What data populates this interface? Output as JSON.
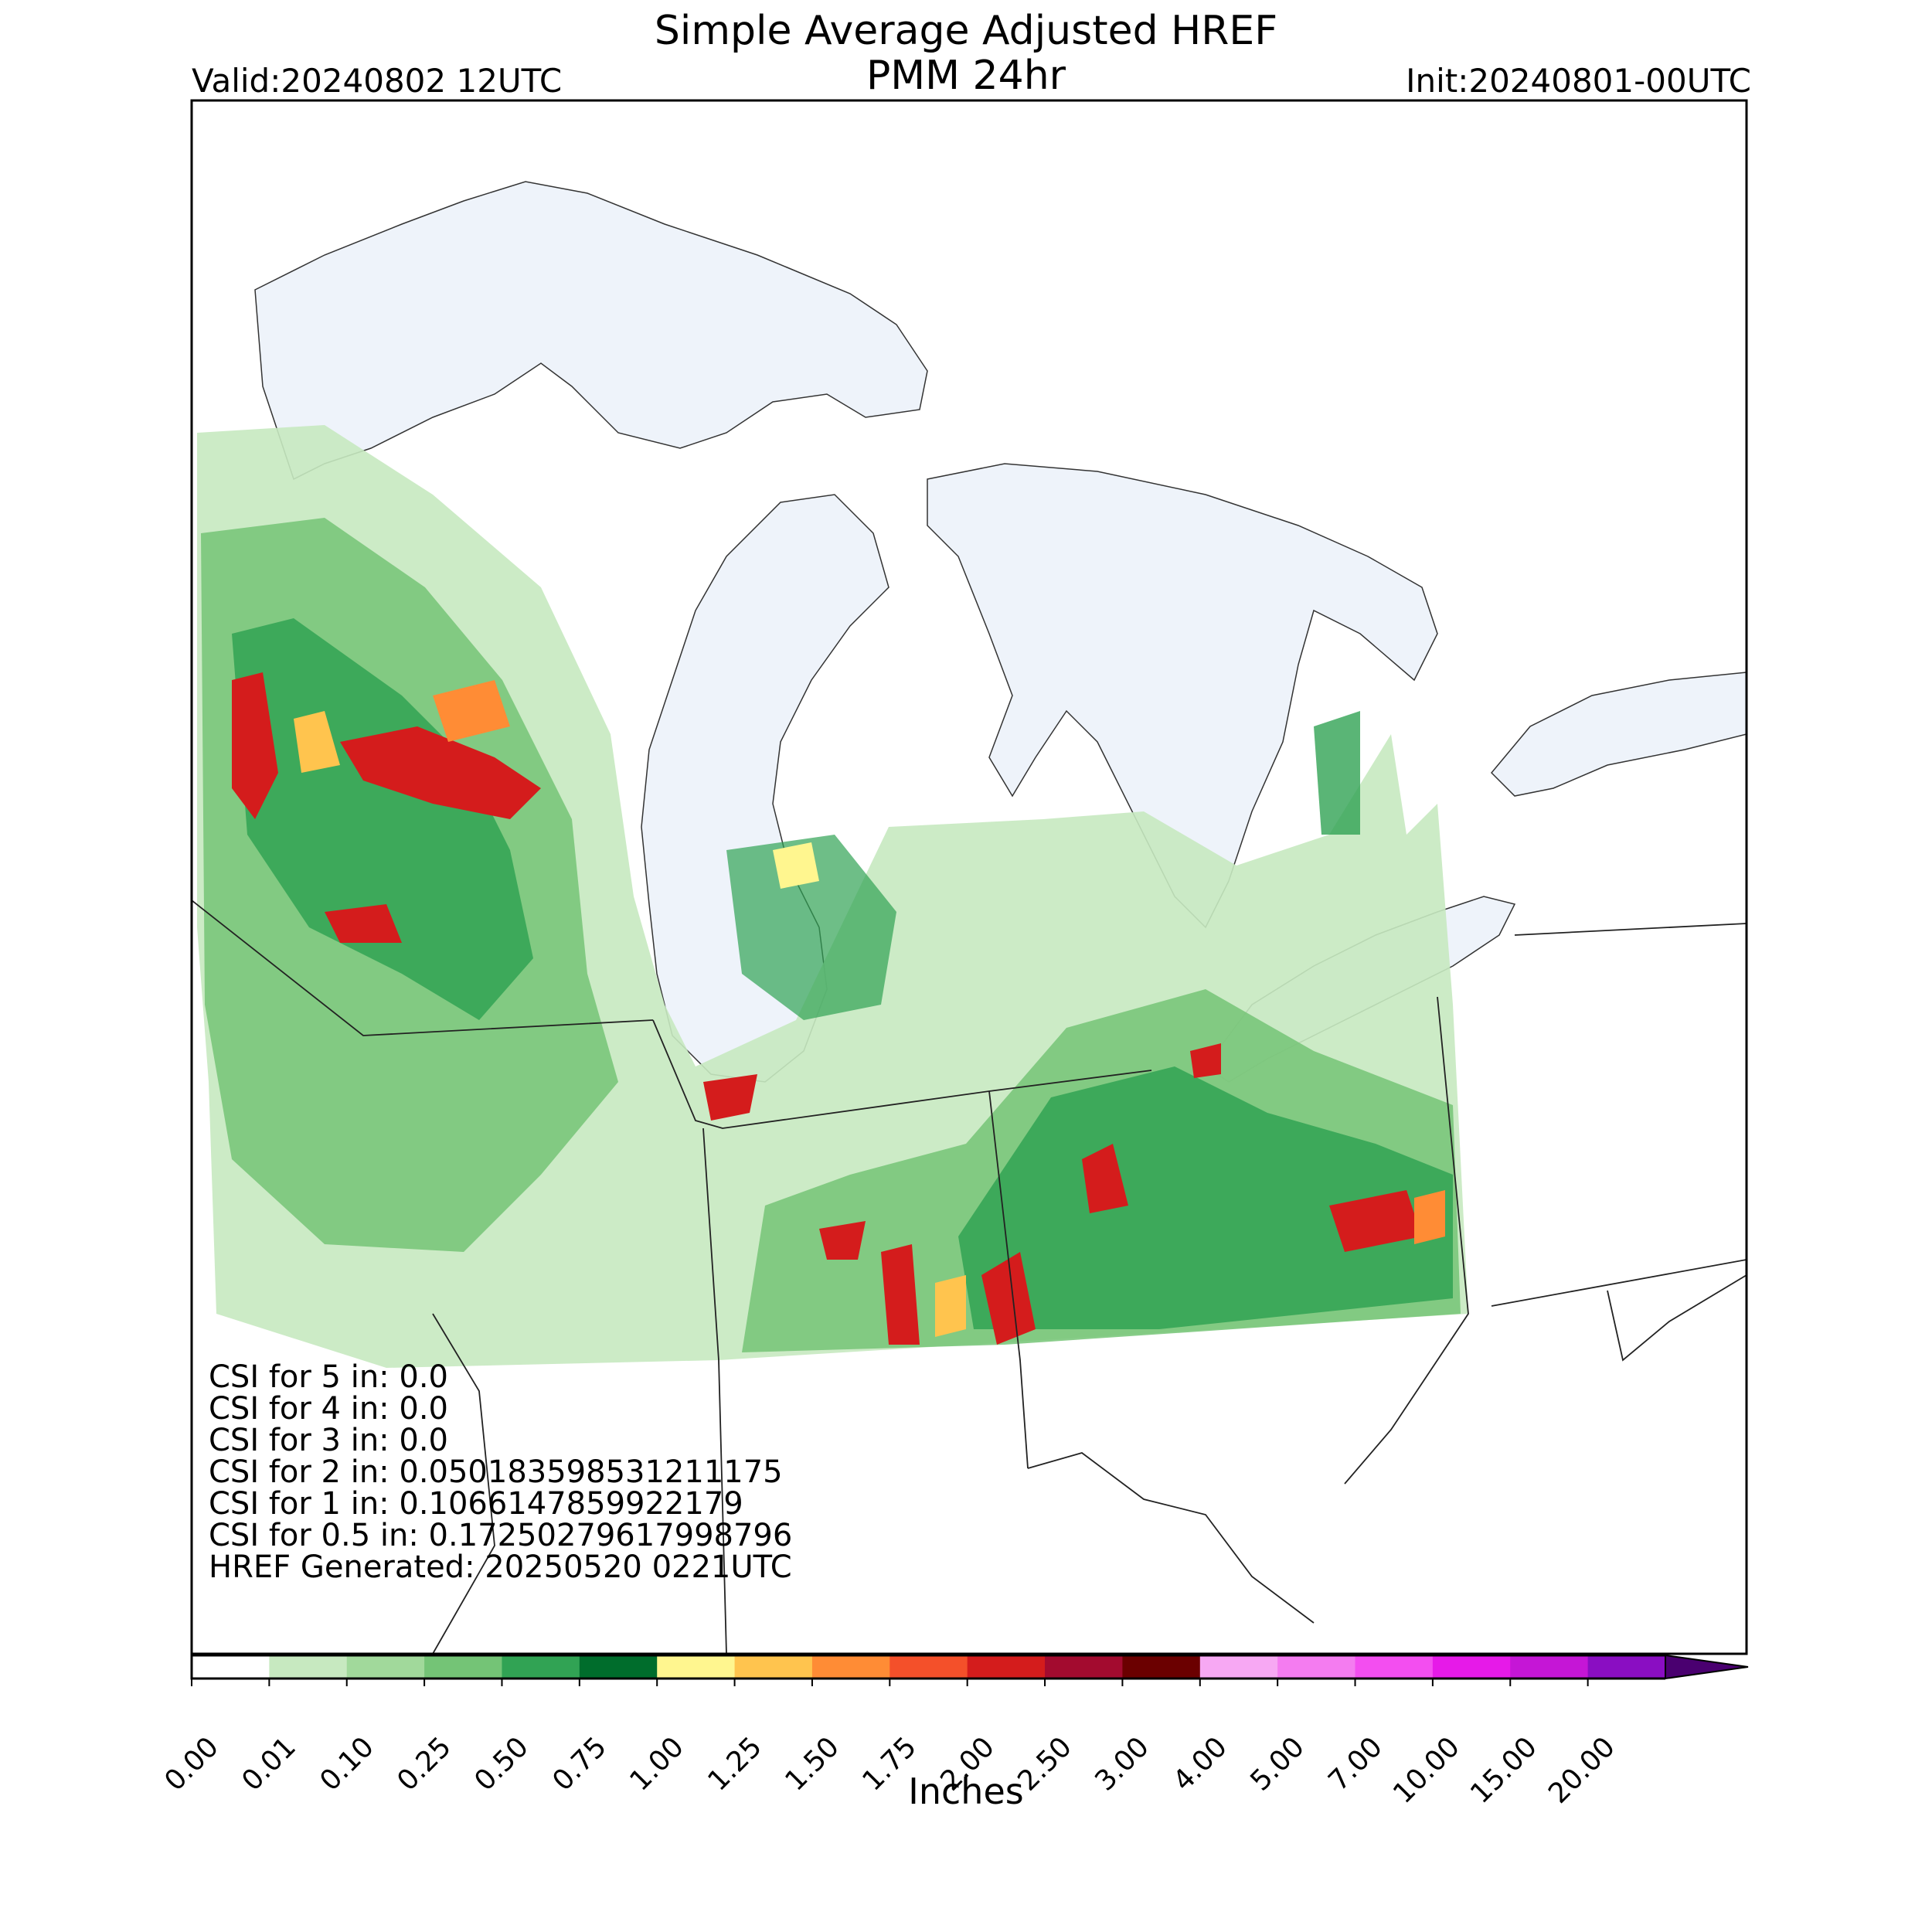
{
  "header": {
    "title_line1": "Simple Average Adjusted HREF",
    "title_line2": "PMM 24hr",
    "valid": "Valid:20240802 12UTC",
    "init": "Init:20240801-00UTC"
  },
  "stats": [
    "CSI for 5 in: 0.0",
    "CSI for 4 in: 0.0",
    "CSI for 3 in: 0.0",
    "CSI for 2 in: 0.050183598531211175",
    "CSI for 1 in: 0.1066147859922179",
    "CSI for 0.5 in: 0.17250279617998796",
    "HREF Generated: 20250520 0221UTC"
  ],
  "colorbar": {
    "label": "Inches",
    "ticks": [
      "0.00",
      "0.01",
      "0.10",
      "0.25",
      "0.50",
      "0.75",
      "1.00",
      "1.25",
      "1.50",
      "1.75",
      "2.00",
      "2.50",
      "3.00",
      "4.00",
      "5.00",
      "7.00",
      "10.00",
      "15.00",
      "20.00"
    ],
    "colors": [
      "#ffffff",
      "#c7e9c0",
      "#a1d99b",
      "#74c476",
      "#31a354",
      "#006d2c",
      "#fff68f",
      "#ffc44e",
      "#ff8c35",
      "#f4502a",
      "#d41c1c",
      "#a30b2f",
      "#6b0000",
      "#f7a8f3",
      "#f47cf0",
      "#f34ef0",
      "#e61ae8",
      "#c516d6",
      "#8a0ec2"
    ],
    "overflow_color": "#4a0070"
  },
  "map": {
    "water_color": "#eef3fa",
    "land_color": "#ffffff"
  }
}
